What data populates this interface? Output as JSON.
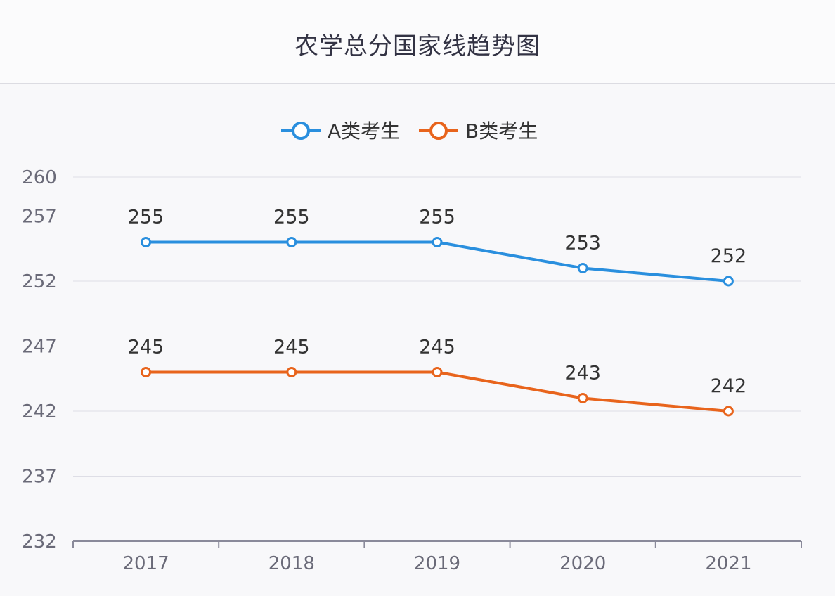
{
  "chart_data": {
    "type": "line",
    "title": "农学总分国家线趋势图",
    "categories": [
      "2017",
      "2018",
      "2019",
      "2020",
      "2021"
    ],
    "series": [
      {
        "name": "A类考生",
        "color": "#2a8fde",
        "values": [
          255,
          255,
          255,
          253,
          252
        ]
      },
      {
        "name": "B类考生",
        "color": "#e8641c",
        "values": [
          245,
          245,
          245,
          243,
          242
        ]
      }
    ],
    "y_ticks": [
      260,
      257,
      252,
      247,
      242,
      237,
      232
    ],
    "ylim": [
      232,
      260
    ],
    "grid": true,
    "legend_position": "top-center",
    "xlabel": "",
    "ylabel": ""
  }
}
